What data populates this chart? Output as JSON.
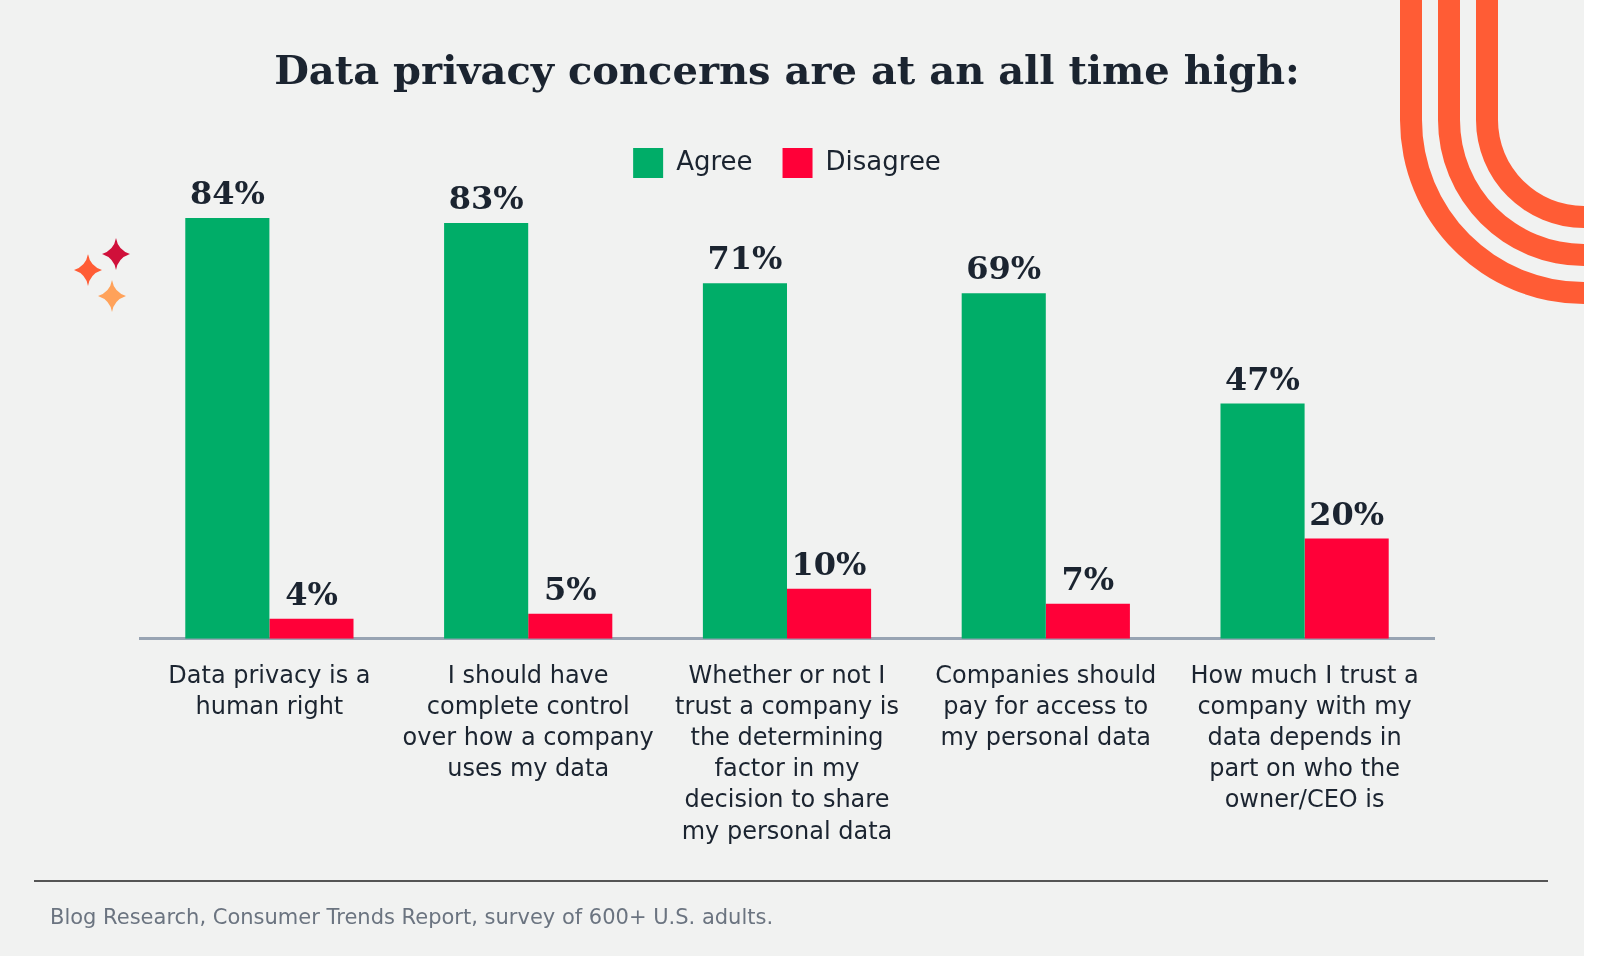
{
  "chart_data": {
    "type": "bar",
    "title": "Data privacy concerns are at an all time high:",
    "categories": [
      "Data privacy is a human right",
      "I should have complete control over how a company uses my data",
      "Whether or not I trust a company is the determining factor in my decision to share my personal data",
      "Companies should pay for access to my personal data",
      "How much I trust a company with my data depends in part on who the owner/CEO is"
    ],
    "series": [
      {
        "name": "Agree",
        "color": "#00ad68",
        "values": [
          84,
          83,
          71,
          69,
          47
        ],
        "value_labels": [
          "84%",
          "83%",
          "71%",
          "69%",
          "47%"
        ]
      },
      {
        "name": "Disagree",
        "color": "#ff0038",
        "values": [
          4,
          5,
          10,
          7,
          20
        ],
        "value_labels": [
          "4%",
          "5%",
          "10%",
          "7%",
          "20%"
        ]
      }
    ],
    "legend": "top",
    "grid": false,
    "annotations": [
      "Blog Research, Consumer Trends Report, survey of 600+ U.S. adults."
    ]
  }
}
